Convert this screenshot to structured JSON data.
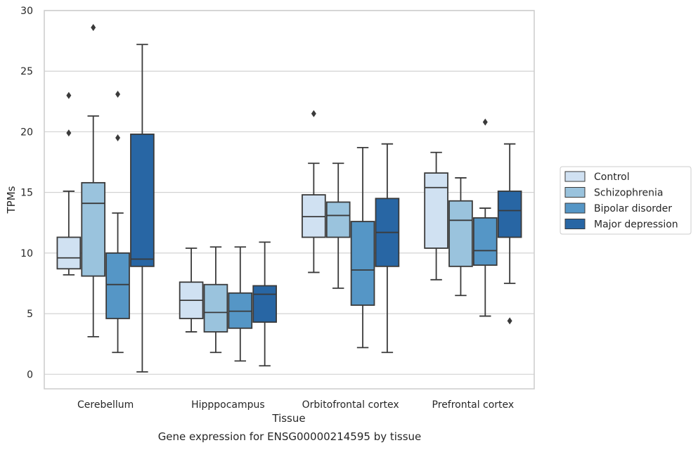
{
  "chart_data": {
    "type": "box",
    "title": "",
    "caption": "Gene expression for ENSG00000214595 by tissue",
    "xlabel": "Tissue",
    "ylabel": "TPMs",
    "ylim": [
      -1.2,
      30
    ],
    "yticks": [
      0,
      5,
      10,
      15,
      20,
      25,
      30
    ],
    "grid": "horizontal",
    "legend_position": "right",
    "categories": [
      "Cerebellum",
      "Hipppocampus",
      "Orbitofrontal cortex",
      "Prefrontal cortex"
    ],
    "series": [
      {
        "name": "Control",
        "color": "#d0e1f2",
        "boxes": [
          {
            "whislo": 8.2,
            "q1": 8.7,
            "med": 9.6,
            "q3": 11.3,
            "whishi": 15.1,
            "fliers": [
              19.9,
              23.0
            ]
          },
          {
            "whislo": 3.5,
            "q1": 4.6,
            "med": 6.1,
            "q3": 7.6,
            "whishi": 10.4,
            "fliers": []
          },
          {
            "whislo": 8.4,
            "q1": 11.3,
            "med": 13.0,
            "q3": 14.8,
            "whishi": 17.4,
            "fliers": [
              21.5
            ]
          },
          {
            "whislo": 7.8,
            "q1": 10.4,
            "med": 15.4,
            "q3": 16.6,
            "whishi": 18.3,
            "fliers": []
          }
        ]
      },
      {
        "name": "Schizophrenia",
        "color": "#9ac3dd",
        "boxes": [
          {
            "whislo": 3.1,
            "q1": 8.1,
            "med": 14.1,
            "q3": 15.8,
            "whishi": 21.3,
            "fliers": [
              28.6
            ]
          },
          {
            "whislo": 1.8,
            "q1": 3.5,
            "med": 5.1,
            "q3": 7.4,
            "whishi": 10.5,
            "fliers": []
          },
          {
            "whislo": 7.1,
            "q1": 11.3,
            "med": 13.1,
            "q3": 14.2,
            "whishi": 17.4,
            "fliers": []
          },
          {
            "whislo": 6.5,
            "q1": 8.9,
            "med": 12.7,
            "q3": 14.3,
            "whishi": 16.2,
            "fliers": []
          }
        ]
      },
      {
        "name": "Bipolar disorder",
        "color": "#5596c6",
        "boxes": [
          {
            "whislo": 1.8,
            "q1": 4.6,
            "med": 7.4,
            "q3": 10.0,
            "whishi": 13.3,
            "fliers": [
              19.5,
              23.1
            ]
          },
          {
            "whislo": 1.1,
            "q1": 3.8,
            "med": 5.2,
            "q3": 6.7,
            "whishi": 10.5,
            "fliers": []
          },
          {
            "whislo": 2.2,
            "q1": 5.7,
            "med": 8.6,
            "q3": 12.6,
            "whishi": 18.7,
            "fliers": []
          },
          {
            "whislo": 4.8,
            "q1": 9.0,
            "med": 10.2,
            "q3": 12.9,
            "whishi": 13.7,
            "fliers": [
              20.8
            ]
          }
        ]
      },
      {
        "name": "Major depression",
        "color": "#2866a4",
        "boxes": [
          {
            "whislo": 0.2,
            "q1": 8.9,
            "med": 9.5,
            "q3": 19.8,
            "whishi": 27.2,
            "fliers": []
          },
          {
            "whislo": 0.7,
            "q1": 4.3,
            "med": 6.6,
            "q3": 7.3,
            "whishi": 10.9,
            "fliers": []
          },
          {
            "whislo": 1.8,
            "q1": 8.9,
            "med": 11.7,
            "q3": 14.5,
            "whishi": 19.0,
            "fliers": []
          },
          {
            "whislo": 7.5,
            "q1": 11.3,
            "med": 13.5,
            "q3": 15.1,
            "whishi": 19.0,
            "fliers": [
              4.4
            ]
          }
        ]
      }
    ]
  }
}
